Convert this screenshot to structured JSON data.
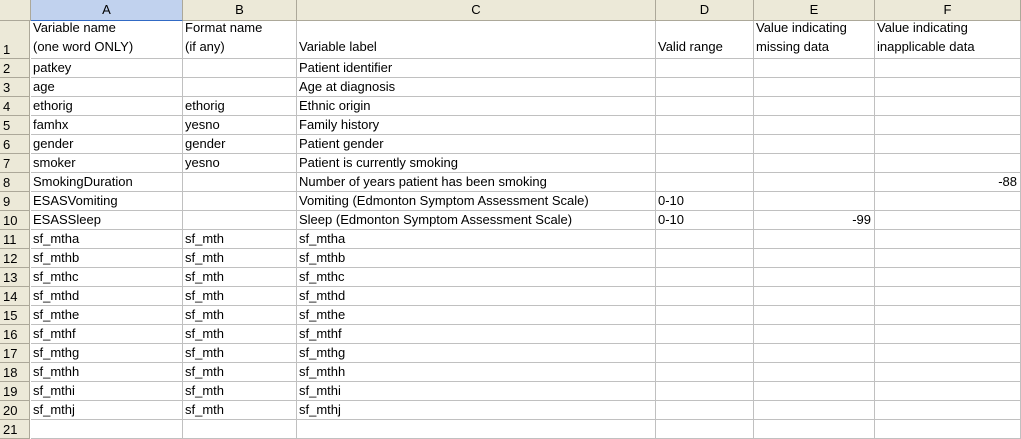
{
  "columns": [
    "A",
    "B",
    "C",
    "D",
    "E",
    "F"
  ],
  "header_row": {
    "row_number": "1",
    "cells": [
      "Variable name\n(one word ONLY)",
      "Format name\n(if any)",
      "Variable label",
      "Valid range",
      "Value indicating\nmissing data",
      "Value indicating\ninapplicable data"
    ]
  },
  "rows": [
    {
      "n": "2",
      "a": "patkey",
      "b": "",
      "c": "Patient identifier",
      "d": "",
      "e": "",
      "f": ""
    },
    {
      "n": "3",
      "a": "age",
      "b": "",
      "c": "Age at diagnosis",
      "d": "",
      "e": "",
      "f": ""
    },
    {
      "n": "4",
      "a": "ethorig",
      "b": "ethorig",
      "c": "Ethnic origin",
      "d": "",
      "e": "",
      "f": ""
    },
    {
      "n": "5",
      "a": "famhx",
      "b": "yesno",
      "c": "Family history",
      "d": "",
      "e": "",
      "f": ""
    },
    {
      "n": "6",
      "a": "gender",
      "b": "gender",
      "c": "Patient gender",
      "d": "",
      "e": "",
      "f": ""
    },
    {
      "n": "7",
      "a": "smoker",
      "b": "yesno",
      "c": "Patient is currently smoking",
      "d": "",
      "e": "",
      "f": ""
    },
    {
      "n": "8",
      "a": "SmokingDuration",
      "b": "",
      "c": "Number of years patient has been smoking",
      "d": "",
      "e": "",
      "f": "-88"
    },
    {
      "n": "9",
      "a": "ESASVomiting",
      "b": "",
      "c": "Vomiting (Edmonton Symptom Assessment Scale)",
      "d": "0-10",
      "e": "",
      "f": ""
    },
    {
      "n": "10",
      "a": "ESASSleep",
      "b": "",
      "c": "Sleep (Edmonton Symptom Assessment Scale)",
      "d": "0-10",
      "e": "-99",
      "f": ""
    },
    {
      "n": "11",
      "a": "sf_mtha",
      "b": "sf_mth",
      "c": "sf_mtha",
      "d": "",
      "e": "",
      "f": ""
    },
    {
      "n": "12",
      "a": "sf_mthb",
      "b": "sf_mth",
      "c": "sf_mthb",
      "d": "",
      "e": "",
      "f": ""
    },
    {
      "n": "13",
      "a": "sf_mthc",
      "b": "sf_mth",
      "c": "sf_mthc",
      "d": "",
      "e": "",
      "f": ""
    },
    {
      "n": "14",
      "a": "sf_mthd",
      "b": "sf_mth",
      "c": "sf_mthd",
      "d": "",
      "e": "",
      "f": ""
    },
    {
      "n": "15",
      "a": "sf_mthe",
      "b": "sf_mth",
      "c": "sf_mthe",
      "d": "",
      "e": "",
      "f": ""
    },
    {
      "n": "16",
      "a": "sf_mthf",
      "b": "sf_mth",
      "c": "sf_mthf",
      "d": "",
      "e": "",
      "f": ""
    },
    {
      "n": "17",
      "a": "sf_mthg",
      "b": "sf_mth",
      "c": "sf_mthg",
      "d": "",
      "e": "",
      "f": ""
    },
    {
      "n": "18",
      "a": "sf_mthh",
      "b": "sf_mth",
      "c": "sf_mthh",
      "d": "",
      "e": "",
      "f": ""
    },
    {
      "n": "19",
      "a": "sf_mthi",
      "b": "sf_mth",
      "c": "sf_mthi",
      "d": "",
      "e": "",
      "f": ""
    },
    {
      "n": "20",
      "a": "sf_mthj",
      "b": "sf_mth",
      "c": "sf_mthj",
      "d": "",
      "e": "",
      "f": ""
    },
    {
      "n": "21",
      "a": "",
      "b": "",
      "c": "",
      "d": "",
      "e": "",
      "f": ""
    }
  ],
  "colors": {
    "header_bg": "#ece9d8",
    "selected_header_bg": "#c1d2ee",
    "gridline": "#c0c0c0"
  }
}
